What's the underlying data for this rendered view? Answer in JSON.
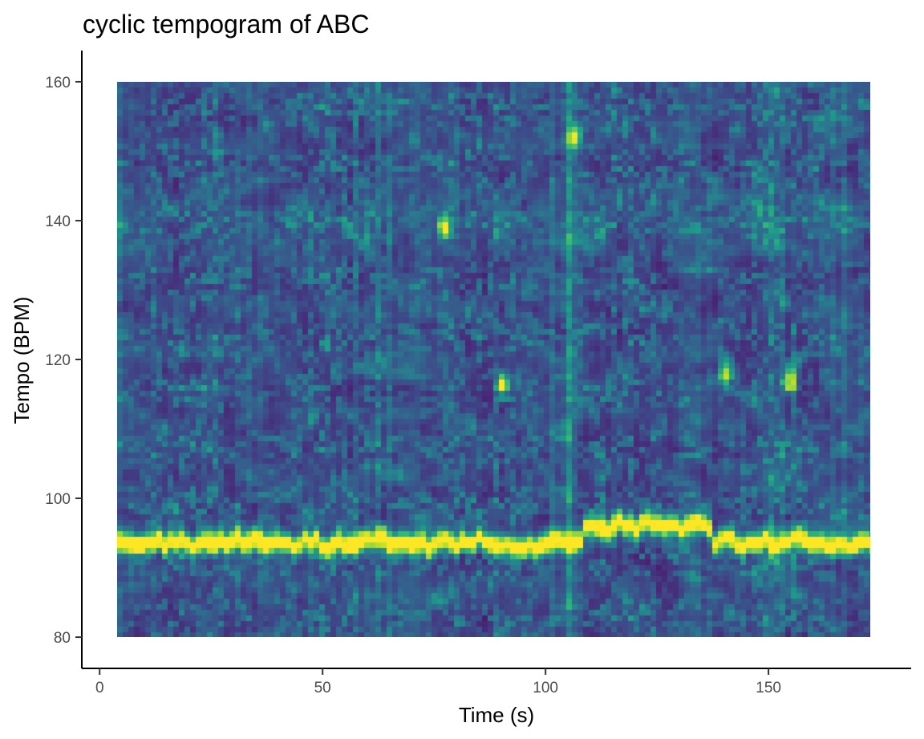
{
  "chart_data": {
    "type": "heatmap",
    "title": "cyclic tempogram of ABC",
    "xlabel": "Time (s)",
    "ylabel": "Tempo (BPM)",
    "x_ticks": [
      0,
      50,
      100,
      150
    ],
    "y_ticks": [
      80,
      100,
      120,
      140,
      160
    ],
    "xlim": [
      -4,
      182
    ],
    "ylim": [
      75.5,
      164.5
    ],
    "x_range": [
      4,
      173
    ],
    "y_range": [
      80,
      160
    ],
    "grid": false,
    "legend": "none",
    "colormap": "viridis",
    "colormap_stops": [
      "#440154",
      "#482878",
      "#3e4a89",
      "#31688e",
      "#26828e",
      "#1f9e89",
      "#35b779",
      "#6ece58",
      "#b5de2b",
      "#fde725"
    ],
    "features": {
      "dominant_tempo_band": [
        {
          "t_start": 4,
          "t_end": 105,
          "bpm": 93.5
        },
        {
          "t_start": 108,
          "t_end": 138,
          "bpm": 96
        },
        {
          "t_start": 139,
          "t_end": 173,
          "bpm": 93.5
        }
      ],
      "vertical_streak": {
        "time": 105.5,
        "tempo_from": 80,
        "tempo_to": 160
      },
      "hot_spots": [
        {
          "time": 106.5,
          "bpm": 152
        },
        {
          "time": 90.5,
          "bpm": 116.5
        },
        {
          "time": 77.5,
          "bpm": 139
        },
        {
          "time": 155,
          "bpm": 117
        },
        {
          "time": 140.5,
          "bpm": 118
        }
      ],
      "secondary_band_bpm": 140
    }
  }
}
